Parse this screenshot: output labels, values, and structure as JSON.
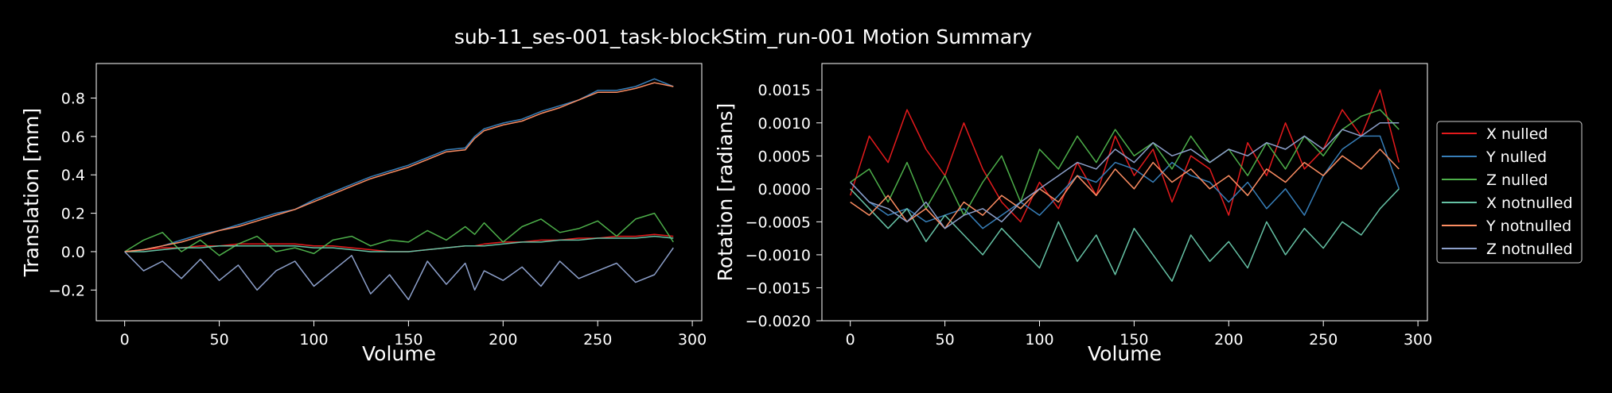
{
  "figure": {
    "title": "sub-11_ses-001_task-blockStim_run-001 Motion Summary",
    "background": "#000000",
    "foreground": "#ffffff"
  },
  "legend": {
    "placement": "outside-right",
    "entries": [
      {
        "label": "X nulled",
        "color": "#e41a1c"
      },
      {
        "label": "Y nulled",
        "color": "#377eb8"
      },
      {
        "label": "Z nulled",
        "color": "#4daf4a"
      },
      {
        "label": "X notnulled",
        "color": "#66c2a5"
      },
      {
        "label": "Y notnulled",
        "color": "#fc8d62"
      },
      {
        "label": "Z notnulled",
        "color": "#8da0cb"
      }
    ]
  },
  "chart_data": [
    {
      "type": "line",
      "title": "",
      "xlabel": "Volume",
      "ylabel": "Translation [mm]",
      "xlim": [
        -15,
        305
      ],
      "ylim": [
        -0.36,
        0.98
      ],
      "xticks": [
        0,
        50,
        100,
        150,
        200,
        250,
        300
      ],
      "xtick_labels": [
        "0",
        "50",
        "100",
        "150",
        "200",
        "250",
        "300"
      ],
      "yticks": [
        -0.2,
        0.0,
        0.2,
        0.4,
        0.6,
        0.8
      ],
      "ytick_labels": [
        "−0.2",
        "0.0",
        "0.2",
        "0.4",
        "0.6",
        "0.8"
      ],
      "grid": false,
      "x": [
        0,
        10,
        20,
        30,
        40,
        50,
        60,
        70,
        80,
        90,
        100,
        110,
        120,
        130,
        140,
        150,
        160,
        170,
        180,
        185,
        190,
        200,
        210,
        220,
        230,
        240,
        250,
        260,
        270,
        280,
        290
      ],
      "series": [
        {
          "name": "X nulled",
          "color": "#e41a1c",
          "values": [
            0.0,
            0.01,
            0.02,
            0.02,
            0.03,
            0.03,
            0.04,
            0.04,
            0.04,
            0.04,
            0.03,
            0.03,
            0.02,
            0.01,
            0.0,
            0.0,
            0.01,
            0.02,
            0.03,
            0.03,
            0.04,
            0.05,
            0.05,
            0.06,
            0.06,
            0.07,
            0.07,
            0.08,
            0.08,
            0.09,
            0.08
          ]
        },
        {
          "name": "Y nulled",
          "color": "#377eb8",
          "values": [
            0.0,
            0.01,
            0.03,
            0.06,
            0.09,
            0.11,
            0.14,
            0.17,
            0.2,
            0.22,
            0.27,
            0.31,
            0.35,
            0.39,
            0.42,
            0.45,
            0.49,
            0.53,
            0.54,
            0.6,
            0.64,
            0.67,
            0.69,
            0.73,
            0.76,
            0.79,
            0.84,
            0.84,
            0.86,
            0.9,
            0.86
          ]
        },
        {
          "name": "Z nulled",
          "color": "#4daf4a",
          "values": [
            0.0,
            0.06,
            0.1,
            0.0,
            0.06,
            -0.02,
            0.04,
            0.08,
            0.0,
            0.02,
            -0.01,
            0.06,
            0.08,
            0.03,
            0.06,
            0.05,
            0.11,
            0.06,
            0.13,
            0.09,
            0.15,
            0.05,
            0.13,
            0.17,
            0.1,
            0.12,
            0.16,
            0.08,
            0.17,
            0.2,
            0.05
          ]
        },
        {
          "name": "X notnulled",
          "color": "#66c2a5",
          "values": [
            0.0,
            0.0,
            0.01,
            0.02,
            0.02,
            0.03,
            0.03,
            0.03,
            0.03,
            0.03,
            0.02,
            0.02,
            0.01,
            0.0,
            0.0,
            0.0,
            0.01,
            0.02,
            0.03,
            0.03,
            0.03,
            0.04,
            0.05,
            0.05,
            0.06,
            0.06,
            0.07,
            0.07,
            0.07,
            0.08,
            0.07
          ]
        },
        {
          "name": "Y notnulled",
          "color": "#fc8d62",
          "values": [
            0.0,
            0.01,
            0.03,
            0.05,
            0.08,
            0.11,
            0.13,
            0.16,
            0.19,
            0.22,
            0.26,
            0.3,
            0.34,
            0.38,
            0.41,
            0.44,
            0.48,
            0.52,
            0.53,
            0.59,
            0.63,
            0.66,
            0.68,
            0.72,
            0.75,
            0.79,
            0.83,
            0.83,
            0.85,
            0.88,
            0.86
          ]
        },
        {
          "name": "Z notnulled",
          "color": "#8da0cb",
          "values": [
            0.0,
            -0.1,
            -0.05,
            -0.14,
            -0.04,
            -0.15,
            -0.07,
            -0.2,
            -0.1,
            -0.05,
            -0.18,
            -0.1,
            -0.02,
            -0.22,
            -0.12,
            -0.25,
            -0.05,
            -0.17,
            -0.06,
            -0.2,
            -0.1,
            -0.15,
            -0.08,
            -0.18,
            -0.05,
            -0.14,
            -0.1,
            -0.06,
            -0.16,
            -0.12,
            0.02
          ]
        }
      ]
    },
    {
      "type": "line",
      "title": "",
      "xlabel": "Volume",
      "ylabel": "Rotation [radians]",
      "xlim": [
        -15,
        305
      ],
      "ylim": [
        -0.002,
        0.0019
      ],
      "xticks": [
        0,
        50,
        100,
        150,
        200,
        250,
        300
      ],
      "xtick_labels": [
        "0",
        "50",
        "100",
        "150",
        "200",
        "250",
        "300"
      ],
      "yticks": [
        -0.002,
        -0.0015,
        -0.001,
        -0.0005,
        0.0,
        0.0005,
        0.001,
        0.0015
      ],
      "ytick_labels": [
        "−0.0020",
        "−0.0015",
        "−0.0010",
        "−0.0005",
        "0.0000",
        "0.0005",
        "0.0010",
        "0.0015"
      ],
      "grid": false,
      "x": [
        0,
        10,
        20,
        30,
        40,
        50,
        60,
        70,
        80,
        90,
        100,
        110,
        120,
        130,
        140,
        150,
        160,
        170,
        180,
        190,
        200,
        210,
        220,
        230,
        240,
        250,
        260,
        270,
        280,
        290
      ],
      "series": [
        {
          "name": "X nulled",
          "color": "#e41a1c",
          "values": [
            -0.0001,
            0.0008,
            0.0004,
            0.0012,
            0.0006,
            0.0002,
            0.001,
            0.0003,
            -0.0002,
            -0.0005,
            0.0001,
            -0.0003,
            0.0004,
            -0.0001,
            0.0008,
            0.0002,
            0.0006,
            -0.0002,
            0.0005,
            0.0003,
            -0.0004,
            0.0007,
            0.0002,
            0.001,
            0.0003,
            0.0006,
            0.0012,
            0.0008,
            0.0015,
            0.0004
          ]
        },
        {
          "name": "Y nulled",
          "color": "#377eb8",
          "values": [
            0.0001,
            -0.0002,
            -0.0004,
            -0.0003,
            -0.0005,
            -0.0004,
            -0.0003,
            -0.0006,
            -0.0004,
            -0.0002,
            -0.0004,
            -0.0001,
            0.0002,
            0.0001,
            0.0004,
            0.0003,
            0.0001,
            0.0004,
            0.0002,
            0.0001,
            -0.0002,
            0.0001,
            -0.0003,
            0.0,
            -0.0004,
            0.0002,
            0.0006,
            0.0008,
            0.0008,
            0.0
          ]
        },
        {
          "name": "Z nulled",
          "color": "#4daf4a",
          "values": [
            0.0001,
            0.0003,
            -0.0002,
            0.0004,
            -0.0003,
            0.0002,
            -0.0004,
            0.0001,
            0.0005,
            -0.0002,
            0.0006,
            0.0003,
            0.0008,
            0.0004,
            0.0009,
            0.0005,
            0.0007,
            0.0003,
            0.0008,
            0.0004,
            0.0006,
            0.0002,
            0.0007,
            0.0003,
            0.0008,
            0.0005,
            0.0009,
            0.0011,
            0.0012,
            0.0009
          ]
        },
        {
          "name": "X notnulled",
          "color": "#66c2a5",
          "values": [
            0.0,
            -0.0003,
            -0.0006,
            -0.0003,
            -0.0008,
            -0.0004,
            -0.0007,
            -0.001,
            -0.0006,
            -0.0009,
            -0.0012,
            -0.0005,
            -0.0011,
            -0.0007,
            -0.0013,
            -0.0006,
            -0.001,
            -0.0014,
            -0.0007,
            -0.0011,
            -0.0008,
            -0.0012,
            -0.0005,
            -0.001,
            -0.0006,
            -0.0009,
            -0.0005,
            -0.0007,
            -0.0003,
            0.0
          ]
        },
        {
          "name": "Y notnulled",
          "color": "#fc8d62",
          "values": [
            -0.0002,
            -0.0004,
            -0.0001,
            -0.0005,
            -0.0003,
            -0.0006,
            -0.0002,
            -0.0004,
            -0.0001,
            -0.0003,
            0.0,
            -0.0002,
            0.0002,
            -0.0001,
            0.0003,
            0.0,
            0.0004,
            0.0001,
            0.0003,
            0.0,
            0.0002,
            -0.0001,
            0.0003,
            0.0001,
            0.0004,
            0.0002,
            0.0005,
            0.0003,
            0.0006,
            0.0003
          ]
        },
        {
          "name": "Z notnulled",
          "color": "#8da0cb",
          "values": [
            0.0001,
            -0.0002,
            -0.0003,
            -0.0005,
            -0.0002,
            -0.0006,
            -0.0004,
            -0.0003,
            -0.0005,
            -0.0002,
            0.0,
            0.0002,
            0.0004,
            0.0003,
            0.0006,
            0.0004,
            0.0007,
            0.0005,
            0.0006,
            0.0004,
            0.0006,
            0.0005,
            0.0007,
            0.0006,
            0.0008,
            0.0006,
            0.0009,
            0.0008,
            0.001,
            0.001
          ]
        }
      ]
    }
  ]
}
